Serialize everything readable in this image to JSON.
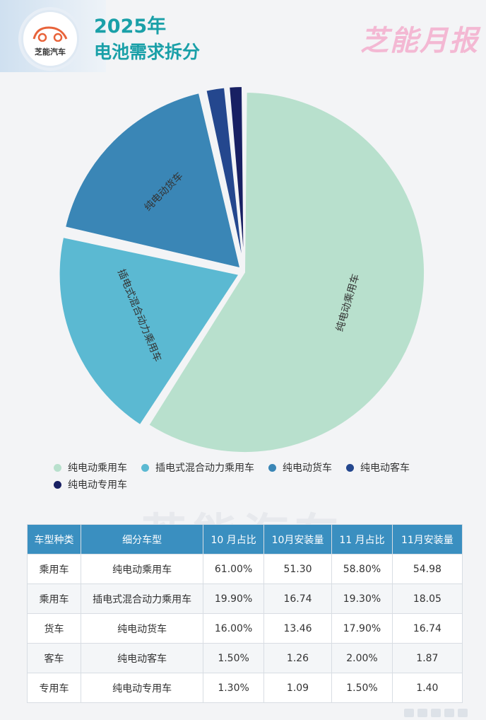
{
  "header": {
    "year": "2025年",
    "title": "电池需求拆分",
    "logo_text": "芝能汽车",
    "brand": "芝能月报"
  },
  "colors": {
    "title": "#1aa0a8",
    "table_header": "#3a8fc0"
  },
  "chart_data": {
    "type": "pie",
    "slices": [
      {
        "label": "纯电动乘用车",
        "value": 58.8,
        "color": "#b8e0cd"
      },
      {
        "label": "插电式混合动力乘用车",
        "value": 19.3,
        "color": "#5bb9d2"
      },
      {
        "label": "纯电动货车",
        "value": 17.9,
        "color": "#3a86b6"
      },
      {
        "label": "纯电动客车",
        "value": 2.0,
        "color": "#24478e"
      },
      {
        "label": "纯电动专用车",
        "value": 1.5,
        "color": "#182063"
      }
    ],
    "legend": [
      "纯电动乘用车",
      "插电式混合动力乘用车",
      "纯电动货车",
      "纯电动客车",
      "纯电动专用车"
    ],
    "legend_placement": "bottom"
  },
  "table": {
    "headers": [
      "车型种类",
      "细分车型",
      "10 月占比",
      "10月安装量",
      "11 月占比",
      "11月安装量"
    ],
    "rows": [
      [
        "乘用车",
        "纯电动乘用车",
        "61.00%",
        "51.30",
        "58.80%",
        "54.98"
      ],
      [
        "乘用车",
        "插电式混合动力乘用车",
        "19.90%",
        "16.74",
        "19.30%",
        "18.05"
      ],
      [
        "货车",
        "纯电动货车",
        "16.00%",
        "13.46",
        "17.90%",
        "16.74"
      ],
      [
        "客车",
        "纯电动客车",
        "1.50%",
        "1.26",
        "2.00%",
        "1.87"
      ],
      [
        "专用车",
        "纯电动专用车",
        "1.30%",
        "1.09",
        "1.50%",
        "1.40"
      ]
    ]
  },
  "watermark": "芝能汽车"
}
